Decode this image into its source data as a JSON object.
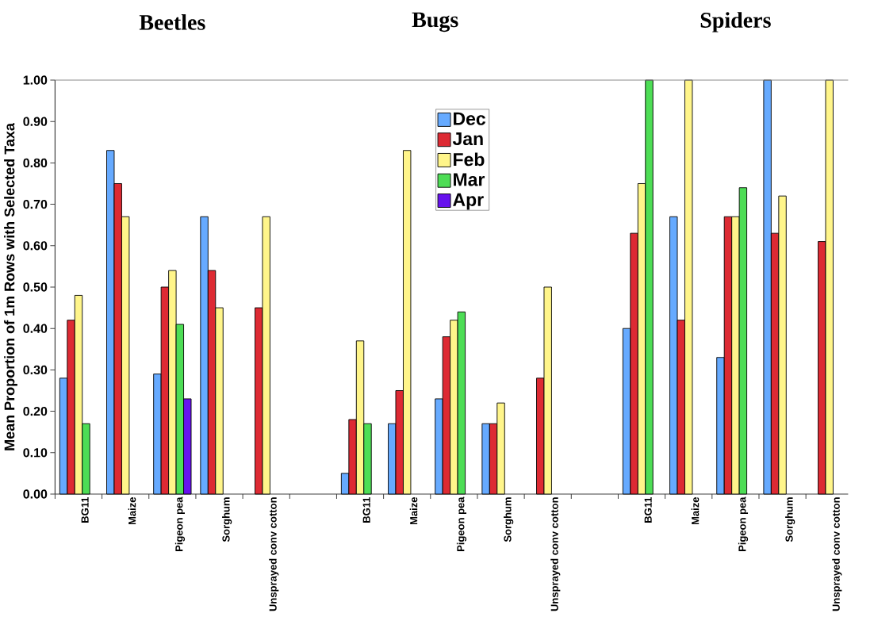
{
  "chart_data": {
    "type": "bar",
    "ylabel": "Mean Proportion of 1m Rows with Selected Taxa",
    "annotations": [
      "Beetles",
      "Bugs",
      "Spiders"
    ],
    "categories": [
      "BG11",
      "Maize",
      "Pigeon pea",
      "Sorghum",
      "Unsprayed conv cotton",
      null,
      "BG11",
      "Maize",
      "Pigeon pea",
      "Sorghum",
      "Unsprayed conv cotton",
      null,
      "BG11",
      "Maize",
      "Pigeon pea",
      "Sorghum",
      "Unsprayed conv cotton",
      null
    ],
    "series": [
      {
        "name": "Dec",
        "color": "#66aaff",
        "values": [
          0.28,
          0.83,
          0.29,
          0.67,
          null,
          null,
          0.05,
          0.17,
          0.23,
          0.17,
          null,
          null,
          0.4,
          0.67,
          0.33,
          1.0,
          null,
          null
        ]
      },
      {
        "name": "Jan",
        "color": "#dd2a33",
        "values": [
          0.42,
          0.75,
          0.5,
          0.54,
          0.45,
          null,
          0.18,
          0.25,
          0.38,
          0.17,
          0.28,
          null,
          0.63,
          0.42,
          0.67,
          0.63,
          0.61,
          null
        ]
      },
      {
        "name": "Feb",
        "color": "#fff58a",
        "values": [
          0.48,
          0.67,
          0.54,
          0.45,
          0.67,
          null,
          0.37,
          0.83,
          0.42,
          0.22,
          0.5,
          null,
          0.75,
          1.0,
          0.67,
          0.72,
          1.0,
          null
        ]
      },
      {
        "name": "Mar",
        "color": "#4ddd55",
        "values": [
          0.17,
          null,
          0.41,
          null,
          null,
          null,
          0.17,
          null,
          0.44,
          null,
          null,
          null,
          1.0,
          null,
          0.74,
          null,
          null,
          null
        ]
      },
      {
        "name": "Apr",
        "color": "#6611ee",
        "values": [
          null,
          null,
          0.23,
          null,
          null,
          null,
          null,
          null,
          null,
          null,
          null,
          null,
          null,
          null,
          null,
          null,
          null,
          null
        ]
      }
    ],
    "ylim": [
      0,
      1
    ],
    "yticks": [
      {
        "value": 0,
        "label": "0.00"
      },
      {
        "value": 0.1,
        "label": "0.10"
      },
      {
        "value": 0.2,
        "label": "0.20"
      },
      {
        "value": 0.3,
        "label": "0.30"
      },
      {
        "value": 0.4,
        "label": "0.40"
      },
      {
        "value": 0.5,
        "label": "0.50"
      },
      {
        "value": 0.6,
        "label": "0.60"
      },
      {
        "value": 0.7,
        "label": "0.70"
      },
      {
        "value": 0.8,
        "label": "0.80"
      },
      {
        "value": 0.9,
        "label": "0.90"
      },
      {
        "value": 1,
        "label": "1.00"
      }
    ],
    "legend": "top",
    "grid": false
  }
}
